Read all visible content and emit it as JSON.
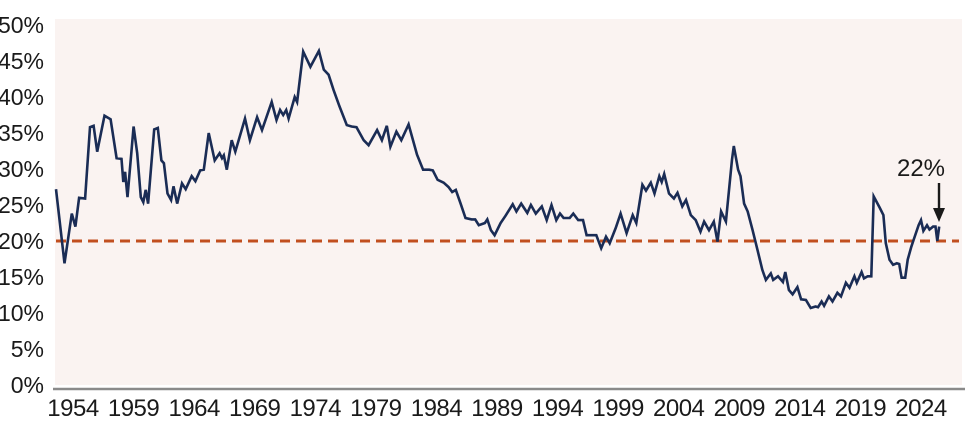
{
  "chart_data": {
    "type": "line",
    "title": "",
    "legend": "none",
    "grid": false,
    "y_axis": {
      "ticks": [
        0,
        5,
        10,
        15,
        20,
        25,
        30,
        35,
        40,
        45,
        50
      ],
      "suffix": "%",
      "min": 0,
      "max": 50
    },
    "x_axis": {
      "ticks": [
        1954,
        1959,
        1964,
        1969,
        1974,
        1979,
        1984,
        1989,
        1994,
        1999,
        2004,
        2009,
        2014,
        2019,
        2024
      ],
      "min": 1952.5,
      "max": 2027.4
    },
    "reference_line": {
      "value": 20,
      "style": "dashed",
      "color": "#c14f1f"
    },
    "annotation": {
      "label": "22%",
      "year": 2025.5,
      "value": 22,
      "arrow": "down"
    },
    "colors": {
      "plot_background": "#faf3f1",
      "page_background": "#ffffff",
      "axis_line": "#8a8a8a",
      "text": "#1a1a1a",
      "series": "#1a2c55"
    },
    "series": [
      {
        "name": "percent-series",
        "color": "#1a2c55",
        "points": [
          [
            1952.6,
            27.2
          ],
          [
            1953.3,
            16.9
          ],
          [
            1953.9,
            23.8
          ],
          [
            1954.2,
            22.0
          ],
          [
            1954.5,
            26.0
          ],
          [
            1955.0,
            25.9
          ],
          [
            1955.4,
            35.8
          ],
          [
            1955.7,
            36.0
          ],
          [
            1956.0,
            32.4
          ],
          [
            1956.6,
            37.4
          ],
          [
            1957.1,
            36.9
          ],
          [
            1957.6,
            31.5
          ],
          [
            1958.0,
            31.4
          ],
          [
            1958.15,
            28.2
          ],
          [
            1958.3,
            29.6
          ],
          [
            1958.5,
            26.1
          ],
          [
            1959.0,
            35.9
          ],
          [
            1959.3,
            32.2
          ],
          [
            1959.6,
            26.1
          ],
          [
            1959.8,
            25.4
          ],
          [
            1960.0,
            27.1
          ],
          [
            1960.2,
            25.2
          ],
          [
            1960.7,
            35.5
          ],
          [
            1961.0,
            35.7
          ],
          [
            1961.3,
            31.2
          ],
          [
            1961.5,
            30.8
          ],
          [
            1961.8,
            26.6
          ],
          [
            1962.1,
            25.7
          ],
          [
            1962.3,
            27.6
          ],
          [
            1962.6,
            25.2
          ],
          [
            1963.0,
            28.0
          ],
          [
            1963.3,
            27.2
          ],
          [
            1963.8,
            29.0
          ],
          [
            1964.1,
            28.3
          ],
          [
            1964.5,
            29.8
          ],
          [
            1964.8,
            29.9
          ],
          [
            1965.2,
            35.0
          ],
          [
            1965.7,
            31.2
          ],
          [
            1966.1,
            32.2
          ],
          [
            1966.3,
            31.5
          ],
          [
            1966.45,
            31.9
          ],
          [
            1966.7,
            29.9
          ],
          [
            1967.1,
            34.0
          ],
          [
            1967.4,
            32.4
          ],
          [
            1968.2,
            37.0
          ],
          [
            1968.6,
            34.0
          ],
          [
            1969.2,
            37.2
          ],
          [
            1969.6,
            35.4
          ],
          [
            1970.4,
            39.3
          ],
          [
            1970.8,
            36.8
          ],
          [
            1971.1,
            38.2
          ],
          [
            1971.35,
            37.5
          ],
          [
            1971.6,
            38.2
          ],
          [
            1971.8,
            37.0
          ],
          [
            1972.3,
            40.0
          ],
          [
            1972.5,
            39.3
          ],
          [
            1973.0,
            46.3
          ],
          [
            1973.6,
            44.2
          ],
          [
            1974.3,
            46.4
          ],
          [
            1974.7,
            43.8
          ],
          [
            1975.1,
            43.1
          ],
          [
            1975.5,
            41.0
          ],
          [
            1976.0,
            38.7
          ],
          [
            1976.6,
            36.1
          ],
          [
            1977.0,
            35.9
          ],
          [
            1977.4,
            35.8
          ],
          [
            1978.0,
            34.0
          ],
          [
            1978.4,
            33.3
          ],
          [
            1979.1,
            35.4
          ],
          [
            1979.5,
            34.0
          ],
          [
            1979.9,
            36.0
          ],
          [
            1980.2,
            33.1
          ],
          [
            1980.7,
            35.2
          ],
          [
            1981.1,
            34.0
          ],
          [
            1981.7,
            36.2
          ],
          [
            1982.4,
            32.0
          ],
          [
            1982.9,
            29.9
          ],
          [
            1983.4,
            29.9
          ],
          [
            1983.7,
            29.8
          ],
          [
            1984.1,
            28.5
          ],
          [
            1984.6,
            28.1
          ],
          [
            1985.0,
            27.5
          ],
          [
            1985.3,
            26.8
          ],
          [
            1985.6,
            27.1
          ],
          [
            1986.0,
            25.2
          ],
          [
            1986.4,
            23.2
          ],
          [
            1986.9,
            23.0
          ],
          [
            1987.2,
            23.0
          ],
          [
            1987.5,
            22.2
          ],
          [
            1988.0,
            22.5
          ],
          [
            1988.2,
            23.0
          ],
          [
            1988.5,
            21.5
          ],
          [
            1988.8,
            20.8
          ],
          [
            1989.3,
            22.5
          ],
          [
            1989.7,
            23.5
          ],
          [
            1990.3,
            25.1
          ],
          [
            1990.6,
            24.1
          ],
          [
            1991.0,
            25.2
          ],
          [
            1991.5,
            23.9
          ],
          [
            1991.8,
            25.0
          ],
          [
            1992.2,
            23.8
          ],
          [
            1992.7,
            24.8
          ],
          [
            1993.1,
            22.9
          ],
          [
            1993.5,
            25.0
          ],
          [
            1993.9,
            22.9
          ],
          [
            1994.2,
            23.8
          ],
          [
            1994.5,
            23.2
          ],
          [
            1995.0,
            23.2
          ],
          [
            1995.3,
            23.8
          ],
          [
            1995.7,
            22.9
          ],
          [
            1996.1,
            22.9
          ],
          [
            1996.4,
            20.8
          ],
          [
            1997.2,
            20.8
          ],
          [
            1997.6,
            19.0
          ],
          [
            1998.0,
            20.6
          ],
          [
            1998.3,
            19.7
          ],
          [
            1998.8,
            21.8
          ],
          [
            1999.2,
            23.8
          ],
          [
            1999.7,
            21.1
          ],
          [
            2000.2,
            23.6
          ],
          [
            2000.5,
            22.5
          ],
          [
            2001.0,
            27.8
          ],
          [
            2001.3,
            27.0
          ],
          [
            2001.7,
            28.1
          ],
          [
            2002.0,
            26.6
          ],
          [
            2002.4,
            29.0
          ],
          [
            2002.6,
            28.2
          ],
          [
            2002.8,
            29.3
          ],
          [
            2003.2,
            26.6
          ],
          [
            2003.6,
            25.9
          ],
          [
            2003.9,
            26.7
          ],
          [
            2004.3,
            24.8
          ],
          [
            2004.6,
            25.7
          ],
          [
            2005.0,
            23.6
          ],
          [
            2005.4,
            22.9
          ],
          [
            2005.8,
            21.3
          ],
          [
            2006.1,
            22.7
          ],
          [
            2006.5,
            21.5
          ],
          [
            2006.9,
            22.7
          ],
          [
            2007.2,
            19.9
          ],
          [
            2007.5,
            24.1
          ],
          [
            2007.9,
            22.7
          ],
          [
            2008.4,
            31.3
          ],
          [
            2008.55,
            33.2
          ],
          [
            2008.9,
            29.9
          ],
          [
            2009.1,
            29.0
          ],
          [
            2009.4,
            25.2
          ],
          [
            2009.7,
            24.1
          ],
          [
            2010.1,
            21.5
          ],
          [
            2010.5,
            18.8
          ],
          [
            2010.9,
            16.0
          ],
          [
            2011.2,
            14.6
          ],
          [
            2011.6,
            15.5
          ],
          [
            2011.8,
            14.6
          ],
          [
            2012.2,
            15.1
          ],
          [
            2012.6,
            14.3
          ],
          [
            2012.8,
            15.7
          ],
          [
            2013.1,
            13.2
          ],
          [
            2013.4,
            12.6
          ],
          [
            2013.8,
            13.6
          ],
          [
            2014.1,
            11.9
          ],
          [
            2014.5,
            11.8
          ],
          [
            2014.9,
            10.7
          ],
          [
            2015.3,
            10.9
          ],
          [
            2015.5,
            10.8
          ],
          [
            2015.8,
            11.6
          ],
          [
            2016.0,
            11.0
          ],
          [
            2016.4,
            12.3
          ],
          [
            2016.7,
            11.6
          ],
          [
            2017.1,
            12.8
          ],
          [
            2017.4,
            12.3
          ],
          [
            2017.8,
            14.2
          ],
          [
            2018.1,
            13.5
          ],
          [
            2018.5,
            15.1
          ],
          [
            2018.7,
            14.2
          ],
          [
            2019.1,
            15.7
          ],
          [
            2019.3,
            14.8
          ],
          [
            2019.6,
            15.1
          ],
          [
            2019.9,
            15.1
          ],
          [
            2020.1,
            26.2
          ],
          [
            2020.6,
            24.6
          ],
          [
            2020.9,
            23.6
          ],
          [
            2021.1,
            19.7
          ],
          [
            2021.4,
            17.4
          ],
          [
            2021.7,
            16.7
          ],
          [
            2022.0,
            16.9
          ],
          [
            2022.2,
            16.8
          ],
          [
            2022.4,
            14.9
          ],
          [
            2022.7,
            14.9
          ],
          [
            2022.9,
            17.4
          ],
          [
            2023.2,
            19.2
          ],
          [
            2023.4,
            20.2
          ],
          [
            2023.8,
            22.2
          ],
          [
            2024.0,
            22.9
          ],
          [
            2024.2,
            21.4
          ],
          [
            2024.5,
            22.2
          ],
          [
            2024.7,
            21.6
          ],
          [
            2025.0,
            22.0
          ],
          [
            2025.2,
            22.0
          ],
          [
            2025.35,
            20.0
          ],
          [
            2025.5,
            22.0
          ]
        ]
      }
    ]
  }
}
